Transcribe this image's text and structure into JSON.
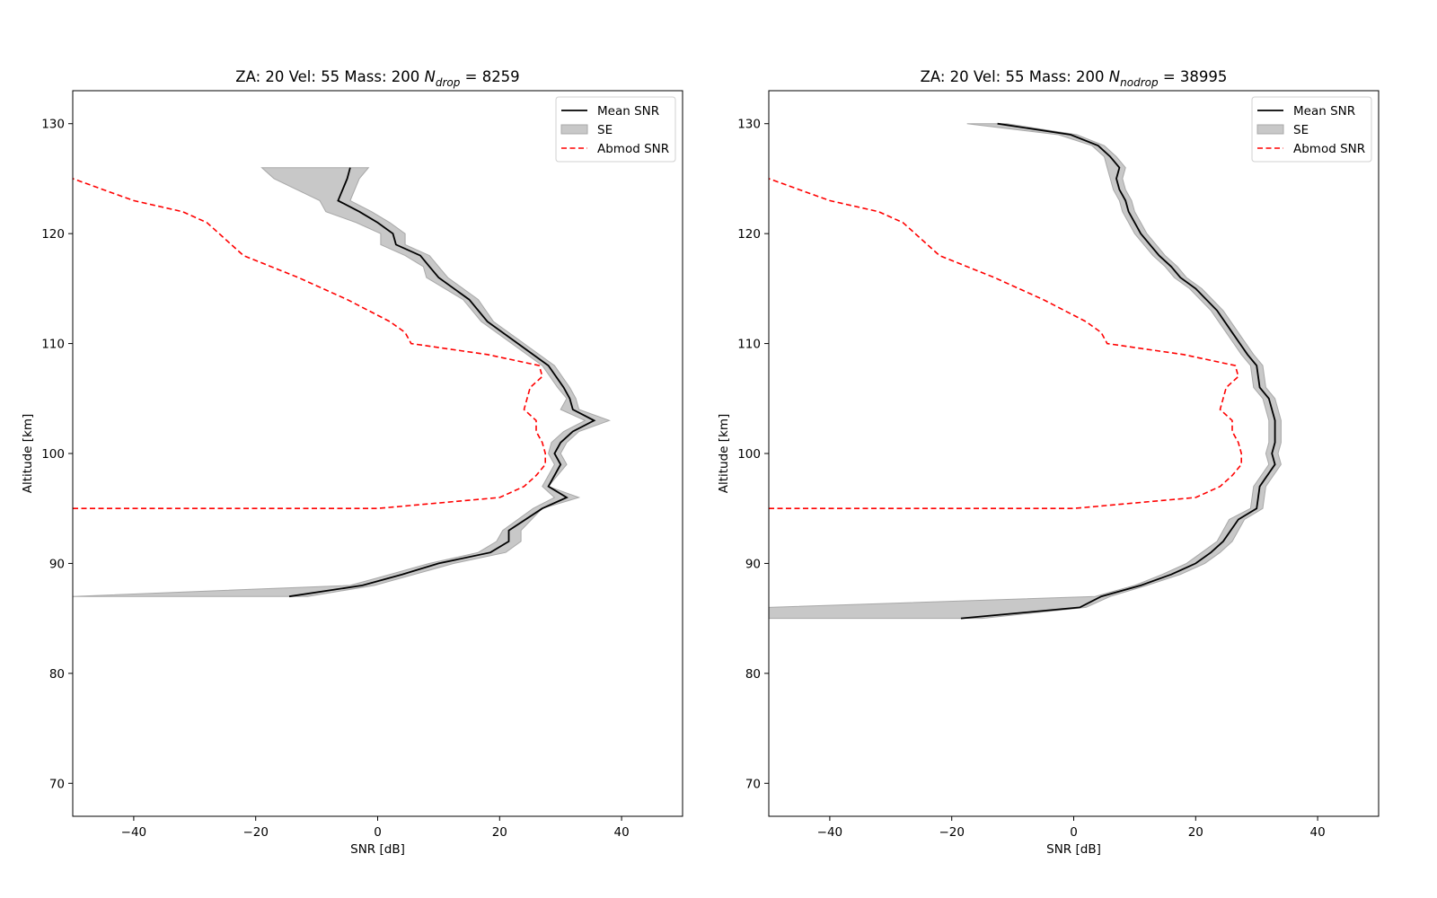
{
  "chart_data": [
    {
      "type": "line",
      "title_prefix": "ZA: 20 Vel: 55 Mass: 200 ",
      "title_var": "N",
      "title_sub": "drop",
      "title_suffix": " = 8259",
      "xlabel": "SNR [dB]",
      "ylabel": "Altitude [km]",
      "xlim": [
        -50,
        50
      ],
      "ylim": [
        67,
        133
      ],
      "xticks": [
        -40,
        -20,
        0,
        20,
        40
      ],
      "yticks": [
        70,
        80,
        90,
        100,
        110,
        120,
        130
      ],
      "xtick_labels": [
        "−40",
        "−20",
        "0",
        "20",
        "40"
      ],
      "ytick_labels": [
        "70",
        "80",
        "90",
        "100",
        "110",
        "120",
        "130"
      ],
      "grid": false,
      "legend_position": "top-right",
      "legend": [
        "Mean SNR",
        "SE",
        "Abmod SNR"
      ],
      "series": [
        {
          "name": "Mean SNR",
          "x": [
            -14.5,
            -2.5,
            4,
            10,
            18.5,
            21.5,
            21.5,
            27,
            31,
            28,
            30,
            29,
            30,
            32,
            35.5,
            32,
            31.5,
            30.5,
            28,
            23,
            18,
            15,
            10,
            8.5,
            7,
            3,
            2.5,
            0,
            -3,
            -6.5,
            -5,
            -4.5
          ],
          "y": [
            87,
            88,
            89,
            90,
            91,
            92,
            93,
            95,
            96,
            97,
            99,
            100,
            101,
            102,
            103,
            104,
            105,
            106,
            108,
            110,
            112,
            114,
            116,
            117,
            118,
            119,
            120,
            121,
            122,
            123,
            125,
            126
          ]
        },
        {
          "name": "SE",
          "upper": [
            -11.5,
            -0.5,
            6,
            12.5,
            21,
            23.5,
            23.5,
            27,
            33,
            28,
            31,
            30,
            31,
            33,
            38,
            33,
            32.5,
            31.5,
            29,
            24,
            19,
            16.5,
            11.5,
            10,
            8.5,
            4.5,
            4.5,
            2,
            -1,
            -4.5,
            -3,
            -1.5
          ],
          "lower": [
            -50,
            -4.5,
            2,
            8.5,
            16.5,
            19.5,
            20.5,
            25.5,
            29,
            27,
            29,
            28,
            28.5,
            30.5,
            34,
            30,
            31,
            29.5,
            27,
            22,
            17,
            14,
            8,
            7.5,
            4.5,
            0.5,
            0.5,
            -3.5,
            -8.5,
            -9.5,
            -17,
            -19
          ]
        },
        {
          "name": "Abmod SNR",
          "x": [
            -50,
            -20,
            0,
            20,
            24,
            26,
            27.5,
            27.5,
            27,
            26,
            26,
            24,
            25,
            27,
            26.5,
            18,
            5.5,
            4.5,
            2,
            -5,
            -13,
            -22,
            -28,
            -32,
            -40,
            -45,
            -50
          ],
          "y": [
            95,
            95,
            95,
            96,
            97,
            98,
            99,
            100,
            101,
            102,
            103,
            104,
            106,
            107,
            108,
            109,
            110,
            111,
            112,
            114,
            116,
            118,
            121,
            122,
            123,
            124,
            125
          ]
        }
      ]
    },
    {
      "type": "line",
      "title_prefix": "ZA: 20 Vel: 55 Mass: 200 ",
      "title_var": "N",
      "title_sub": "nodrop",
      "title_suffix": " = 38995",
      "xlabel": "SNR [dB]",
      "ylabel": "Altitude [km]",
      "xlim": [
        -50,
        50
      ],
      "ylim": [
        67,
        133
      ],
      "xticks": [
        -40,
        -20,
        0,
        20,
        40
      ],
      "yticks": [
        70,
        80,
        90,
        100,
        110,
        120,
        130
      ],
      "xtick_labels": [
        "−40",
        "−20",
        "0",
        "20",
        "40"
      ],
      "ytick_labels": [
        "70",
        "80",
        "90",
        "100",
        "110",
        "120",
        "130"
      ],
      "grid": false,
      "legend_position": "top-right",
      "legend": [
        "Mean SNR",
        "SE",
        "Abmod SNR"
      ],
      "series": [
        {
          "name": "Mean SNR",
          "x": [
            -18.5,
            1,
            4.5,
            11,
            16,
            20,
            22.5,
            24.5,
            27,
            30,
            30.5,
            33,
            32.5,
            33,
            33,
            33,
            32,
            30.5,
            30,
            28.5,
            26,
            23.5,
            20,
            17.5,
            16,
            14,
            12.5,
            11,
            10,
            9,
            8.5,
            7.5,
            7,
            7.5,
            6,
            4,
            -0.5,
            -12.5
          ],
          "y": [
            85,
            86,
            87,
            88,
            89,
            90,
            91,
            92,
            94,
            95,
            97,
            99,
            100,
            101,
            102,
            103,
            105,
            106,
            108,
            109,
            111,
            113,
            115,
            116,
            117,
            118,
            119,
            120,
            121,
            122,
            123,
            124,
            125,
            126,
            127,
            128,
            129,
            130
          ]
        },
        {
          "name": "SE",
          "upper": [
            -15,
            2,
            6,
            12,
            17.5,
            21.5,
            24,
            26,
            28,
            31,
            31.5,
            34,
            33.5,
            34,
            34,
            34,
            33,
            31.5,
            31,
            29.5,
            27,
            24.5,
            21,
            18.5,
            17,
            15,
            13.5,
            12,
            11,
            10,
            9.5,
            8.5,
            8,
            8.5,
            7,
            5,
            0.5,
            -11
          ],
          "lower": [
            -50,
            -50,
            3.5,
            10,
            14.5,
            18.5,
            21,
            23.5,
            25.5,
            29,
            29.5,
            32,
            31.5,
            32,
            32,
            32,
            31,
            29.5,
            29,
            27.5,
            25,
            22.5,
            19,
            16.5,
            15,
            13,
            11.5,
            10,
            9,
            8,
            7.5,
            6.5,
            6,
            5.5,
            5,
            3,
            -2.5,
            -17.5
          ]
        },
        {
          "name": "Abmod SNR",
          "x": [
            -50,
            -20,
            0,
            20,
            24,
            26,
            27.5,
            27.5,
            27,
            26,
            26,
            24,
            25,
            27,
            26.5,
            18,
            5.5,
            4.5,
            2,
            -5,
            -13,
            -22,
            -28,
            -32,
            -40,
            -45,
            -50
          ],
          "y": [
            95,
            95,
            95,
            96,
            97,
            98,
            99,
            100,
            101,
            102,
            103,
            104,
            106,
            107,
            108,
            109,
            110,
            111,
            112,
            114,
            116,
            118,
            121,
            122,
            123,
            124,
            125
          ]
        }
      ]
    }
  ]
}
